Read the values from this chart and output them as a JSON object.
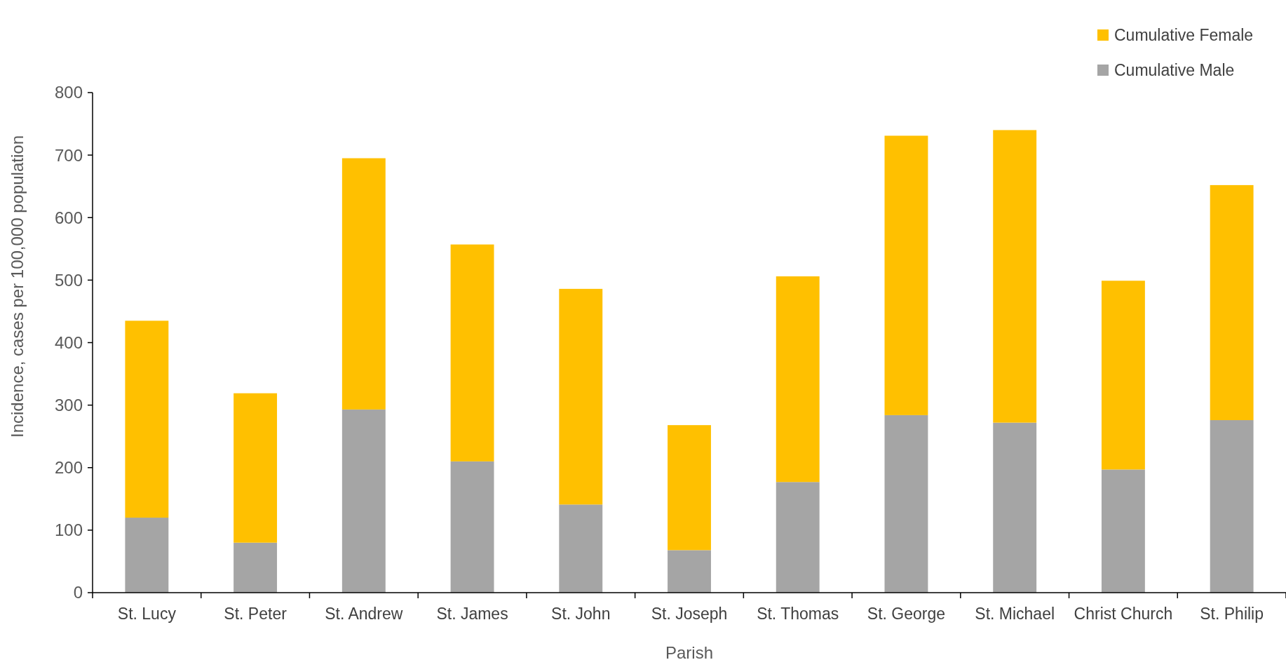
{
  "chart_data": {
    "type": "bar",
    "stacked": true,
    "xlabel": "Parish",
    "ylabel": "Incidence, cases per 100,000 population",
    "categories": [
      "St. Lucy",
      "St. Peter",
      "St. Andrew",
      "St. James",
      "St. John",
      "St. Joseph",
      "St. Thomas",
      "St. George",
      "St. Michael",
      "Christ Church",
      "St. Philip"
    ],
    "series": [
      {
        "name": "Cumulative Male",
        "color": "#a5a5a5",
        "values": [
          120,
          80,
          293,
          210,
          141,
          68,
          177,
          284,
          272,
          197,
          276
        ]
      },
      {
        "name": "Cumulative Female",
        "color": "#ffc000",
        "values": [
          315,
          239,
          402,
          347,
          345,
          200,
          329,
          447,
          468,
          302,
          376
        ]
      }
    ],
    "ylim": [
      0,
      800
    ],
    "yticks": [
      0,
      100,
      200,
      300,
      400,
      500,
      600,
      700,
      800
    ],
    "grid": false,
    "legend": "top right"
  }
}
